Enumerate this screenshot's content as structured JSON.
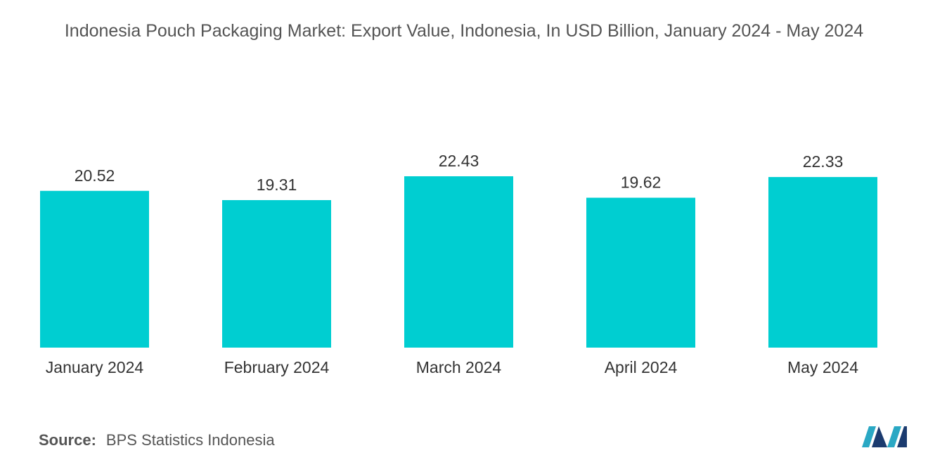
{
  "chart_data": {
    "type": "bar",
    "title": "Indonesia Pouch Packaging Market: Export Value, Indonesia, In USD Billion, January 2024 - May 2024",
    "categories": [
      "January 2024",
      "February 2024",
      "March 2024",
      "April 2024",
      "May 2024"
    ],
    "values": [
      20.52,
      19.31,
      22.43,
      19.62,
      22.33
    ],
    "color": "#00ced1",
    "source_label": "Source:",
    "source": "BPS Statistics Indonesia"
  }
}
